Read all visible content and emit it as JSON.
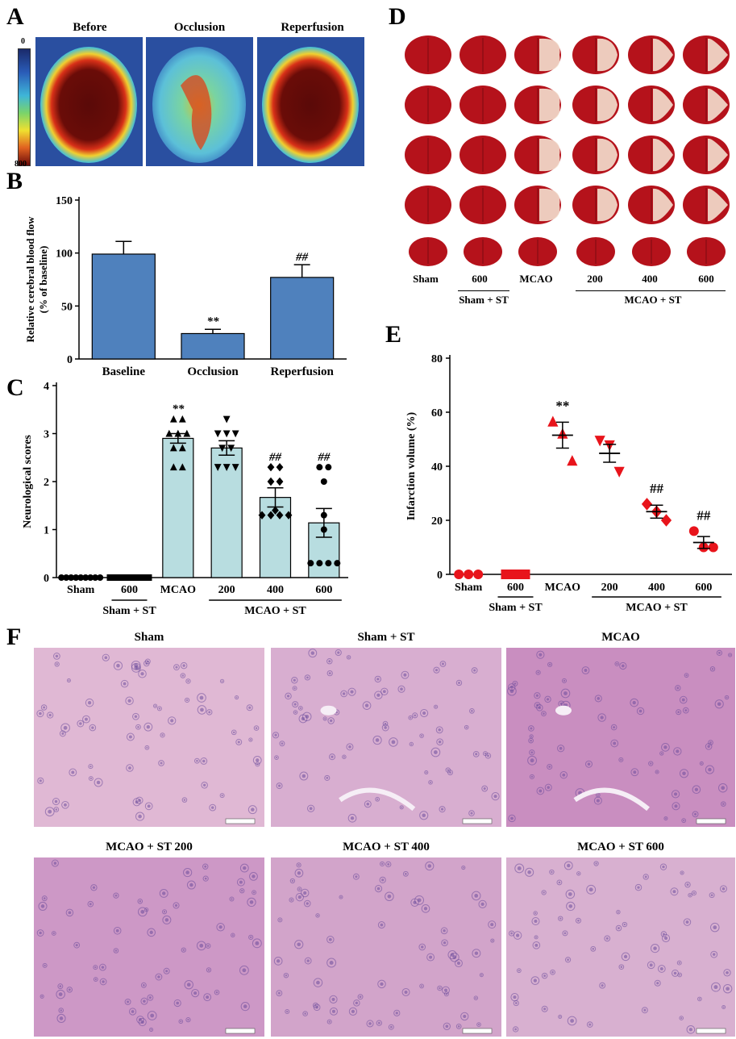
{
  "panels": {
    "a": {
      "letter": "A",
      "titles": [
        "Before",
        "Occlusion",
        "Reperfusion"
      ],
      "scale_min": "0",
      "scale_max": "800"
    },
    "b": {
      "letter": "B"
    },
    "c": {
      "letter": "C"
    },
    "d": {
      "letter": "D",
      "labels": [
        "Sham",
        "600",
        "MCAO",
        "200",
        "400",
        "600"
      ],
      "group_sham_st": "Sham + ST",
      "group_mcao_st": "MCAO + ST"
    },
    "e": {
      "letter": "E"
    },
    "f": {
      "letter": "F",
      "titles": [
        "Sham",
        "Sham + ST",
        "MCAO",
        "MCAO + ST 200",
        "MCAO + ST 400",
        "MCAO + ST 600"
      ]
    }
  },
  "colors": {
    "bar_blue": "#4f81bd",
    "bar_light": "#b8dde0",
    "marker_red": "#e8141b",
    "brain_red": "#b5121b",
    "infarct_pale": "#f3e0cf",
    "he_bg": "#d7a8cd",
    "he_cell": "#6a4a9a"
  },
  "chart_data": [
    {
      "id": "B",
      "type": "bar",
      "categories": [
        "Baseline",
        "Occlusion",
        "Reperfusion"
      ],
      "values": [
        99,
        24,
        77
      ],
      "errors": [
        12,
        4,
        12
      ],
      "annotations": [
        "",
        "**",
        "##"
      ],
      "ylabel": "Relative cerebral blood flow (% of baseline)",
      "ylabel_lines": [
        "Relative cerebral blood flow",
        "(% of baseline)"
      ],
      "yticks": [
        0,
        50,
        100,
        150
      ],
      "ylim": [
        0,
        150
      ]
    },
    {
      "id": "C",
      "type": "bar",
      "categories": [
        "Sham",
        "600",
        "MCAO",
        "200",
        "400",
        "600"
      ],
      "values": [
        0,
        0,
        2.9,
        2.7,
        1.67,
        1.14
      ],
      "errors": [
        0,
        0,
        0.1,
        0.15,
        0.2,
        0.3
      ],
      "annotations": [
        "",
        "",
        "**",
        "",
        "##",
        "##"
      ],
      "markers": [
        "circle",
        "square",
        "triangle-up",
        "triangle-down",
        "diamond",
        "circle"
      ],
      "points": [
        [
          0,
          0,
          0,
          0,
          0,
          0,
          0,
          0,
          0
        ],
        [
          0,
          0,
          0,
          0,
          0,
          0,
          0,
          0,
          0
        ],
        [
          3.3,
          3.3,
          3.0,
          3.0,
          3.0,
          2.7,
          2.7,
          2.3,
          2.3
        ],
        [
          3.3,
          3.0,
          3.0,
          3.0,
          2.7,
          2.7,
          2.3,
          2.3,
          2.3
        ],
        [
          2.3,
          2.3,
          2.0,
          2.0,
          1.4,
          1.3,
          1.3,
          1.3,
          1.3
        ],
        [
          2.3,
          2.3,
          2.0,
          1.3,
          1.0,
          0.3,
          0.3,
          0.3,
          0.3
        ]
      ],
      "groups": [
        {
          "label": "Sham + ST",
          "from": 1,
          "to": 1
        },
        {
          "label": "MCAO + ST",
          "from": 3,
          "to": 5
        }
      ],
      "ylabel": "Neurological scores",
      "yticks": [
        0,
        1,
        2,
        3,
        4
      ],
      "ylim": [
        0,
        4
      ]
    },
    {
      "id": "E",
      "type": "scatter",
      "categories": [
        "Sham",
        "600",
        "MCAO",
        "200",
        "400",
        "600"
      ],
      "means": [
        0,
        0,
        51.5,
        44.8,
        23.2,
        11.8
      ],
      "errors": [
        0,
        0,
        4.8,
        3.3,
        2.4,
        2.2
      ],
      "annotations": [
        "",
        "",
        "**",
        "",
        "##",
        "##"
      ],
      "markers": [
        "circle",
        "square",
        "triangle-up",
        "triangle-down",
        "diamond",
        "circle"
      ],
      "points": [
        [
          0,
          0,
          0
        ],
        [
          0,
          0,
          0
        ],
        [
          56.5,
          52.0,
          42.0
        ],
        [
          49.5,
          47.8,
          38.0
        ],
        [
          26.0,
          23.2,
          20.0
        ],
        [
          16.0,
          10.0,
          10.0
        ]
      ],
      "groups": [
        {
          "label": "Sham + ST",
          "from": 1,
          "to": 1
        },
        {
          "label": "MCAO + ST",
          "from": 3,
          "to": 5
        }
      ],
      "ylabel": "Infarction volume (%)",
      "yticks": [
        0,
        20,
        40,
        60,
        80
      ],
      "ylim": [
        0,
        80
      ]
    }
  ]
}
